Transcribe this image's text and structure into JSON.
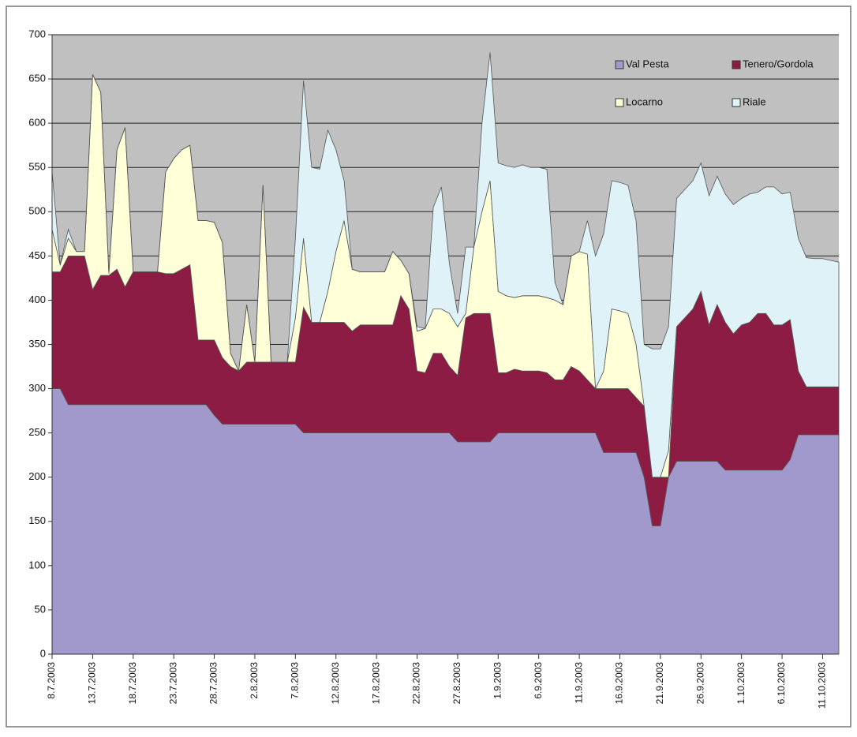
{
  "chart_data": {
    "type": "stacked-area",
    "categories": [
      "8.7.2003",
      null,
      null,
      null,
      null,
      "13.7.2003",
      null,
      null,
      null,
      null,
      "18.7.2003",
      null,
      null,
      null,
      null,
      "23.7.2003",
      null,
      null,
      null,
      null,
      "28.7.2003",
      null,
      null,
      null,
      null,
      "2.8.2003",
      null,
      null,
      null,
      null,
      "7.8.2003",
      null,
      null,
      null,
      null,
      "12.8.2003",
      null,
      null,
      null,
      null,
      "17.8.2003",
      null,
      null,
      null,
      null,
      "22.8.2003",
      null,
      null,
      null,
      null,
      "27.8.2003",
      null,
      null,
      null,
      null,
      "1.9.2003",
      null,
      null,
      null,
      null,
      "6.9.2003",
      null,
      null,
      null,
      null,
      "11.9.2003",
      null,
      null,
      null,
      null,
      "16.9.2003",
      null,
      null,
      null,
      null,
      "21.9.2003",
      null,
      null,
      null,
      null,
      "26.9.2003",
      null,
      null,
      null,
      null,
      "1.10.2003",
      null,
      null,
      null,
      null,
      "6.10.2003",
      null,
      null,
      null,
      null,
      "11.10.2003",
      null,
      null
    ],
    "series": [
      {
        "name": "Val Pesta",
        "color": "#a199cc",
        "values": [
          300,
          300,
          282,
          282,
          282,
          282,
          282,
          282,
          282,
          282,
          282,
          282,
          282,
          282,
          282,
          282,
          282,
          282,
          282,
          282,
          270,
          260,
          260,
          260,
          260,
          260,
          260,
          260,
          260,
          260,
          260,
          250,
          250,
          250,
          250,
          250,
          250,
          250,
          250,
          250,
          250,
          250,
          250,
          250,
          250,
          250,
          250,
          250,
          250,
          250,
          240,
          240,
          240,
          240,
          240,
          250,
          250,
          250,
          250,
          250,
          250,
          250,
          250,
          250,
          250,
          250,
          250,
          250,
          228,
          228,
          228,
          228,
          228,
          200,
          145,
          145,
          200,
          218,
          218,
          218,
          218,
          218,
          218,
          208,
          208,
          208,
          208,
          208,
          208,
          208,
          208,
          220,
          248,
          248,
          248,
          248,
          248,
          248
        ]
      },
      {
        "name": "Tenero/Gordola",
        "color": "#8c1c44",
        "values": [
          132,
          132,
          168,
          168,
          168,
          130,
          146,
          146,
          153,
          133,
          150,
          150,
          150,
          150,
          148,
          148,
          153,
          158,
          73,
          73,
          85,
          75,
          65,
          60,
          70,
          70,
          70,
          70,
          70,
          70,
          70,
          142,
          125,
          125,
          125,
          125,
          125,
          115,
          122,
          122,
          122,
          122,
          122,
          155,
          140,
          70,
          68,
          90,
          90,
          75,
          75,
          140,
          145,
          145,
          145,
          68,
          68,
          72,
          70,
          70,
          70,
          68,
          60,
          60,
          75,
          70,
          60,
          50,
          72,
          72,
          72,
          72,
          62,
          80,
          55,
          55,
          0,
          152,
          162,
          172,
          192,
          154,
          177,
          167,
          154,
          164,
          167,
          177,
          177,
          164,
          164,
          158,
          72,
          54,
          54,
          54,
          54,
          54
        ]
      },
      {
        "name": "Locarno",
        "color": "#ffffd8",
        "values": [
          48,
          8,
          20,
          5,
          5,
          243,
          207,
          2,
          135,
          180,
          0,
          0,
          0,
          0,
          115,
          130,
          135,
          135,
          135,
          135,
          133,
          130,
          15,
          0,
          65,
          0,
          200,
          0,
          0,
          0,
          50,
          78,
          0,
          0,
          35,
          80,
          115,
          70,
          60,
          60,
          60,
          60,
          83,
          40,
          40,
          45,
          50,
          50,
          50,
          60,
          55,
          5,
          75,
          115,
          150,
          92,
          87,
          81,
          85,
          85,
          85,
          85,
          90,
          85,
          125,
          135,
          142,
          0,
          20,
          90,
          88,
          85,
          60,
          0,
          0,
          0,
          30,
          0,
          0,
          0,
          0,
          0,
          0,
          0,
          0,
          0,
          0,
          0,
          0,
          0,
          0,
          0,
          0,
          0,
          0,
          0,
          0,
          0
        ]
      },
      {
        "name": "Riale",
        "color": "#def2f8",
        "values": [
          65,
          0,
          10,
          0,
          0,
          0,
          0,
          0,
          0,
          0,
          0,
          0,
          0,
          0,
          0,
          0,
          0,
          0,
          0,
          0,
          0,
          0,
          0,
          0,
          0,
          0,
          0,
          0,
          0,
          0,
          90,
          178,
          175,
          173,
          182,
          115,
          45,
          0,
          0,
          0,
          0,
          0,
          0,
          0,
          0,
          5,
          0,
          115,
          138,
          55,
          15,
          75,
          0,
          100,
          145,
          145,
          147,
          147,
          148,
          145,
          145,
          145,
          20,
          0,
          0,
          0,
          38,
          150,
          155,
          145,
          145,
          145,
          140,
          70,
          145,
          145,
          140,
          145,
          145,
          145,
          145,
          146,
          145,
          145,
          146,
          143,
          145,
          137,
          143,
          156,
          148,
          144,
          150,
          146,
          145,
          145,
          143,
          141
        ]
      }
    ],
    "ylim": [
      0,
      700
    ],
    "yticks": [
      0,
      50,
      100,
      150,
      200,
      250,
      300,
      350,
      400,
      450,
      500,
      550,
      600,
      650,
      700
    ],
    "grid": true,
    "legend": "top-right",
    "plot_background": "#c0c0c0"
  }
}
